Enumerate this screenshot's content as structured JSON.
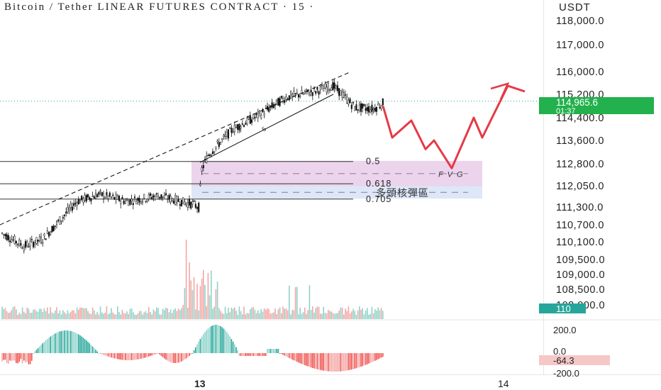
{
  "header": {
    "title": "Bitcoin / Tether LINEAR FUTURES CONTRACT · 15 ·",
    "unit": "USDT"
  },
  "chart_data": {
    "type": "candlestick",
    "price_axis": {
      "ticks": [
        "118,000.0",
        "117,000.0",
        "116,000.0",
        "115,200.0",
        "114,400.0",
        "113,600.0",
        "112,800.0",
        "112,050.0",
        "111,300.0",
        "110,700.0",
        "110,100.0",
        "109,500.0",
        "109,000.0",
        "108,500.0",
        "108,000.0"
      ]
    },
    "current_price": {
      "label": "114,965.6",
      "countdown": "01:37",
      "value": 114965.6,
      "color": "#22b14c"
    },
    "fib_levels": [
      {
        "label": "0.5",
        "price": 112880
      },
      {
        "label": "0.618",
        "price": 112120
      },
      {
        "label": "0.705",
        "price": 111580
      }
    ],
    "zones": [
      {
        "label": "F V G",
        "top": 112900,
        "bottom": 112030,
        "color": "#e9cdea"
      },
      {
        "label": "多頭核彈區",
        "top": 112040,
        "bottom": 111600,
        "color": "#d7e3f7"
      }
    ],
    "projection": [
      114800,
      113700,
      114300,
      113300,
      113600,
      112650,
      114400,
      113700,
      115500,
      115300
    ],
    "time_labels": [
      "13",
      "14"
    ],
    "volume": {
      "last_label": "110",
      "color": "#26a69a"
    },
    "oscillator": {
      "ticks": [
        "200.0",
        "0.0",
        "-200.0"
      ],
      "last_label": "-64.3",
      "last_value": -64.3
    },
    "colors": {
      "up": "#26a69a",
      "down": "#ef5350",
      "projection": "#e63946",
      "text": "#222222"
    },
    "grid": false
  }
}
